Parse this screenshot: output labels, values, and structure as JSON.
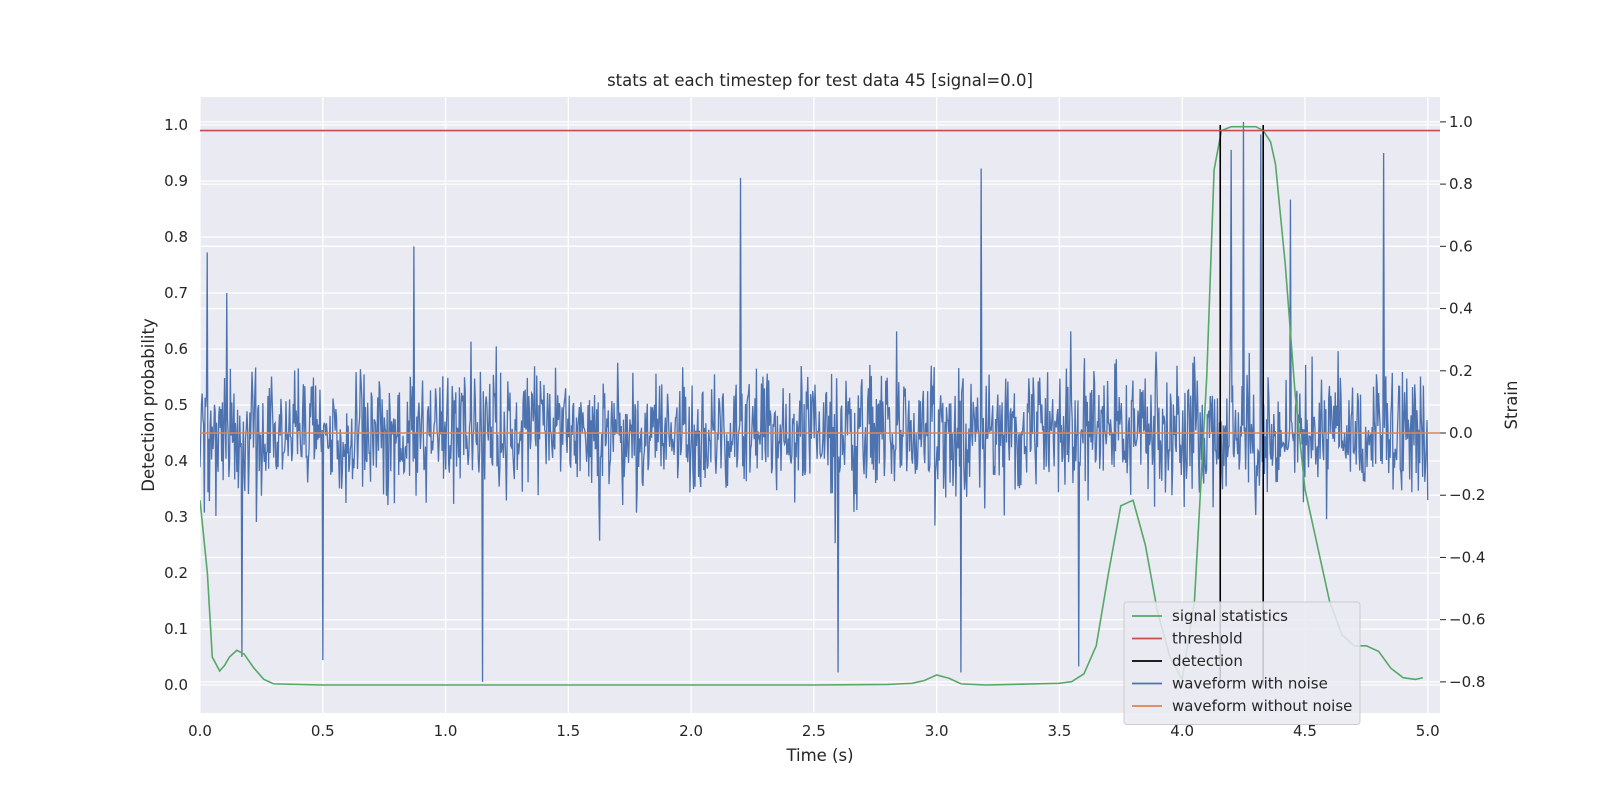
{
  "chart_data": {
    "type": "line",
    "title": "stats at each timestep for test data 45 [signal=0.0]",
    "xlabel": "Time (s)",
    "ylabel": "Detection probability",
    "ylabel_right": "Strain",
    "xlim": [
      0.0,
      5.05
    ],
    "ylim": [
      -0.05,
      1.05
    ],
    "ylim_right": [
      -0.9,
      1.08
    ],
    "grid": true,
    "xticks": [
      0.0,
      0.5,
      1.0,
      1.5,
      2.0,
      2.5,
      3.0,
      3.5,
      4.0,
      4.5,
      5.0
    ],
    "xtick_labels": [
      "0.0",
      "0.5",
      "1.0",
      "1.5",
      "2.0",
      "2.5",
      "3.0",
      "3.5",
      "4.0",
      "4.5",
      "5.0"
    ],
    "yticks": [
      0.0,
      0.1,
      0.2,
      0.3,
      0.4,
      0.5,
      0.6,
      0.7,
      0.8,
      0.9,
      1.0
    ],
    "ytick_labels": [
      "0.0",
      "0.1",
      "0.2",
      "0.3",
      "0.4",
      "0.5",
      "0.6",
      "0.7",
      "0.8",
      "0.9",
      "1.0"
    ],
    "yticks_right": [
      -0.8,
      -0.6,
      -0.4,
      -0.2,
      0.0,
      0.2,
      0.4,
      0.6,
      0.8,
      1.0
    ],
    "ytick_labels_right": [
      "−0.8",
      "−0.6",
      "−0.4",
      "−0.2",
      "0.0",
      "0.2",
      "0.4",
      "0.6",
      "0.8",
      "1.0"
    ],
    "legend_position": "bottom-right",
    "series": [
      {
        "name": "signal statistics",
        "axis": "left",
        "color": "#55a868",
        "x": [
          0.0,
          0.03,
          0.05,
          0.08,
          0.1,
          0.12,
          0.15,
          0.18,
          0.22,
          0.26,
          0.3,
          0.5,
          1.0,
          1.5,
          2.0,
          2.5,
          2.8,
          2.9,
          2.95,
          3.0,
          3.05,
          3.1,
          3.2,
          3.5,
          3.55,
          3.6,
          3.65,
          3.7,
          3.75,
          3.8,
          3.85,
          3.9,
          3.95,
          4.0,
          4.05,
          4.1,
          4.13,
          4.16,
          4.2,
          4.25,
          4.3,
          4.33,
          4.36,
          4.38,
          4.42,
          4.46,
          4.5,
          4.55,
          4.6,
          4.65,
          4.7,
          4.75,
          4.8,
          4.85,
          4.9,
          4.95,
          4.98
        ],
        "values": [
          0.33,
          0.2,
          0.05,
          0.025,
          0.035,
          0.05,
          0.062,
          0.055,
          0.03,
          0.01,
          0.002,
          0.0,
          0.0,
          0.0,
          0.0,
          0.0,
          0.001,
          0.003,
          0.008,
          0.018,
          0.012,
          0.002,
          0.0,
          0.003,
          0.006,
          0.02,
          0.07,
          0.2,
          0.32,
          0.33,
          0.25,
          0.13,
          0.05,
          0.01,
          0.15,
          0.55,
          0.92,
          0.99,
          0.997,
          0.997,
          0.997,
          0.99,
          0.97,
          0.93,
          0.75,
          0.52,
          0.35,
          0.25,
          0.15,
          0.09,
          0.07,
          0.07,
          0.06,
          0.03,
          0.013,
          0.01,
          0.013
        ]
      },
      {
        "name": "threshold",
        "axis": "left",
        "color": "#c44e52",
        "x": [
          0.0,
          5.05
        ],
        "values": [
          0.99,
          0.99
        ]
      },
      {
        "name": "detection",
        "axis": "left",
        "color": "#000000",
        "x": [
          4.155,
          4.155,
          4.33,
          4.33
        ],
        "values": [
          0.0,
          1.0,
          0.0,
          1.0
        ]
      },
      {
        "name": "waveform with noise",
        "axis": "right",
        "color": "#4c72b0",
        "noise_rms": 0.2,
        "sample_count": 1700,
        "peaks": [
          {
            "x": 0.03,
            "value": 0.58
          },
          {
            "x": 0.11,
            "value": 0.45
          },
          {
            "x": 0.17,
            "value": -0.72
          },
          {
            "x": 0.5,
            "value": -0.73
          },
          {
            "x": 0.87,
            "value": 0.6
          },
          {
            "x": 1.15,
            "value": -0.8
          },
          {
            "x": 2.2,
            "value": 0.82
          },
          {
            "x": 2.6,
            "value": -0.77
          },
          {
            "x": 3.1,
            "value": -0.77
          },
          {
            "x": 3.18,
            "value": 0.85
          },
          {
            "x": 3.58,
            "value": -0.75
          },
          {
            "x": 4.2,
            "value": 0.91
          },
          {
            "x": 4.25,
            "value": 1.0
          },
          {
            "x": 4.32,
            "value": 0.96
          },
          {
            "x": 4.44,
            "value": 0.75
          },
          {
            "x": 4.82,
            "value": 0.9
          }
        ]
      },
      {
        "name": "waveform without noise",
        "axis": "right",
        "color": "#dd8452",
        "x": [
          0.0,
          5.05
        ],
        "values": [
          0.0,
          0.0
        ]
      }
    ]
  }
}
